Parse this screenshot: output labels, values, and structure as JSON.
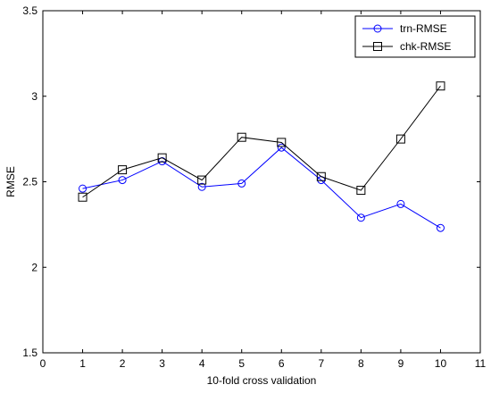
{
  "chart_data": {
    "type": "line",
    "title": "",
    "xlabel": "10-fold cross validation",
    "ylabel": "RMSE",
    "xlim": [
      0,
      11
    ],
    "ylim": [
      1.5,
      3.5
    ],
    "xticks": [
      "0",
      "1",
      "2",
      "3",
      "4",
      "5",
      "6",
      "7",
      "8",
      "9",
      "10",
      "11"
    ],
    "yticks": [
      "1.5",
      "2",
      "2.5",
      "3",
      "3.5"
    ],
    "grid": false,
    "legend_position": "top-right",
    "x": [
      1,
      2,
      3,
      4,
      5,
      6,
      7,
      8,
      9,
      10
    ],
    "series": [
      {
        "name": "trn-RMSE",
        "color": "#0000ff",
        "marker": "circle",
        "values": [
          2.46,
          2.51,
          2.62,
          2.47,
          2.49,
          2.7,
          2.51,
          2.29,
          2.37,
          2.23
        ]
      },
      {
        "name": "chk-RMSE",
        "color": "#000000",
        "marker": "square",
        "values": [
          2.41,
          2.57,
          2.64,
          2.51,
          2.76,
          2.73,
          2.53,
          2.45,
          2.75,
          3.06
        ]
      }
    ]
  }
}
